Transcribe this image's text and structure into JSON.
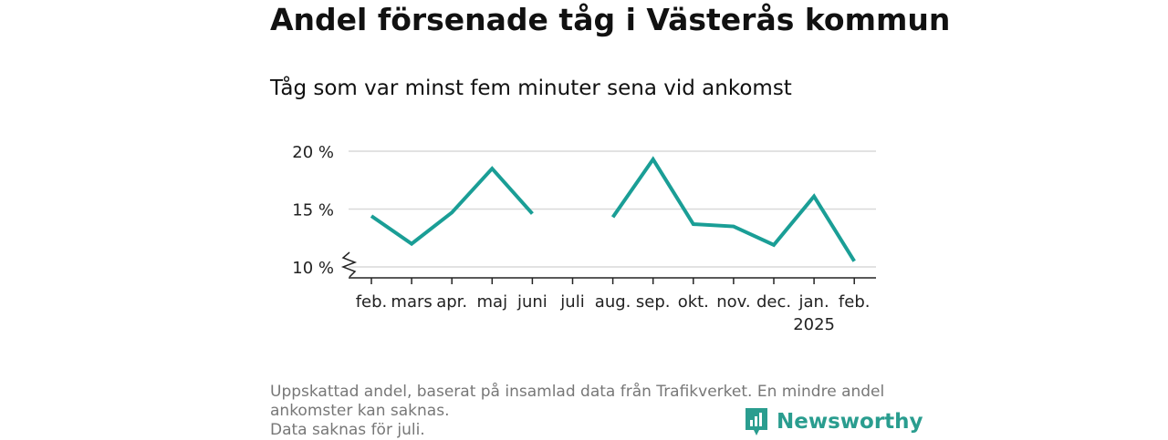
{
  "title": "Andel försenade tåg i Västerås kommun",
  "subtitle": "Tåg som var minst fem minuter sena vid ankomst",
  "footnote_lines": [
    "Uppskattad andel, baserat på insamlad data från Trafikverket. En mindre andel",
    "ankomster kan saknas.",
    "Data saknas för juli."
  ],
  "brand": "Newsworthy",
  "colors": {
    "line": "#1a9e96",
    "grid": "#d9d9d9",
    "axis": "#222222",
    "brand": "#2a9d8f"
  },
  "chart_data": {
    "type": "line",
    "categories": [
      "feb.",
      "mars",
      "apr.",
      "maj",
      "juni",
      "juli",
      "aug.",
      "sep.",
      "okt.",
      "nov.",
      "dec.",
      "jan.",
      "feb."
    ],
    "category_sublabels": [
      "",
      "",
      "",
      "",
      "",
      "",
      "",
      "",
      "",
      "",
      "",
      "2025",
      ""
    ],
    "series": [
      {
        "values": [
          14.4,
          12.0,
          14.7,
          18.5,
          14.6,
          null,
          14.3,
          19.3,
          13.7,
          13.5,
          11.9,
          16.1,
          10.5
        ]
      }
    ],
    "yticks": [
      10,
      15,
      20
    ],
    "ytick_labels": [
      "10 %",
      "15 %",
      "20 %"
    ],
    "ylim": [
      10,
      20
    ],
    "y_axis_break": true,
    "grid": true,
    "xlabel": "",
    "ylabel": ""
  }
}
